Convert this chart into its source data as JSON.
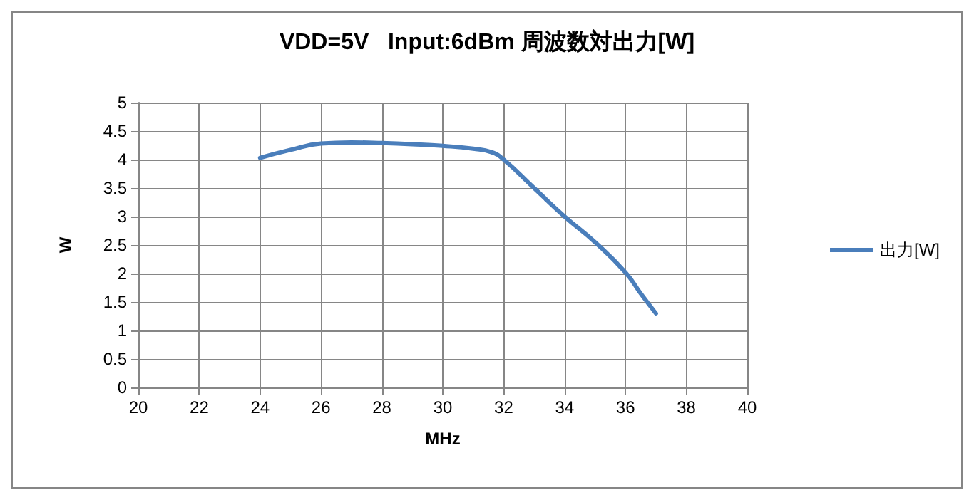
{
  "chart_data": {
    "type": "line",
    "title": "VDD=5V   Input:6dBm 周波数対出力[W]",
    "xlabel": "MHz",
    "ylabel": "W",
    "x": [
      24,
      25,
      26,
      27,
      28,
      29,
      30,
      31,
      31.6,
      32,
      33,
      34,
      35,
      36,
      36.5,
      37
    ],
    "series": [
      {
        "name": "出力[W]",
        "color": "#4a7ebb",
        "values": [
          4.03,
          4.17,
          4.28,
          4.3,
          4.29,
          4.27,
          4.24,
          4.19,
          4.13,
          4.0,
          3.5,
          3.0,
          2.55,
          2.02,
          1.65,
          1.3
        ]
      }
    ],
    "xlim": [
      20,
      40
    ],
    "xticks": [
      20,
      22,
      24,
      26,
      28,
      30,
      32,
      34,
      36,
      38,
      40
    ],
    "ylim": [
      0,
      5
    ],
    "yticks": [
      0,
      0.5,
      1,
      1.5,
      2,
      2.5,
      3,
      3.5,
      4,
      4.5,
      5
    ],
    "grid": true,
    "legend": "right",
    "marker": "none",
    "line_style": "solid"
  }
}
